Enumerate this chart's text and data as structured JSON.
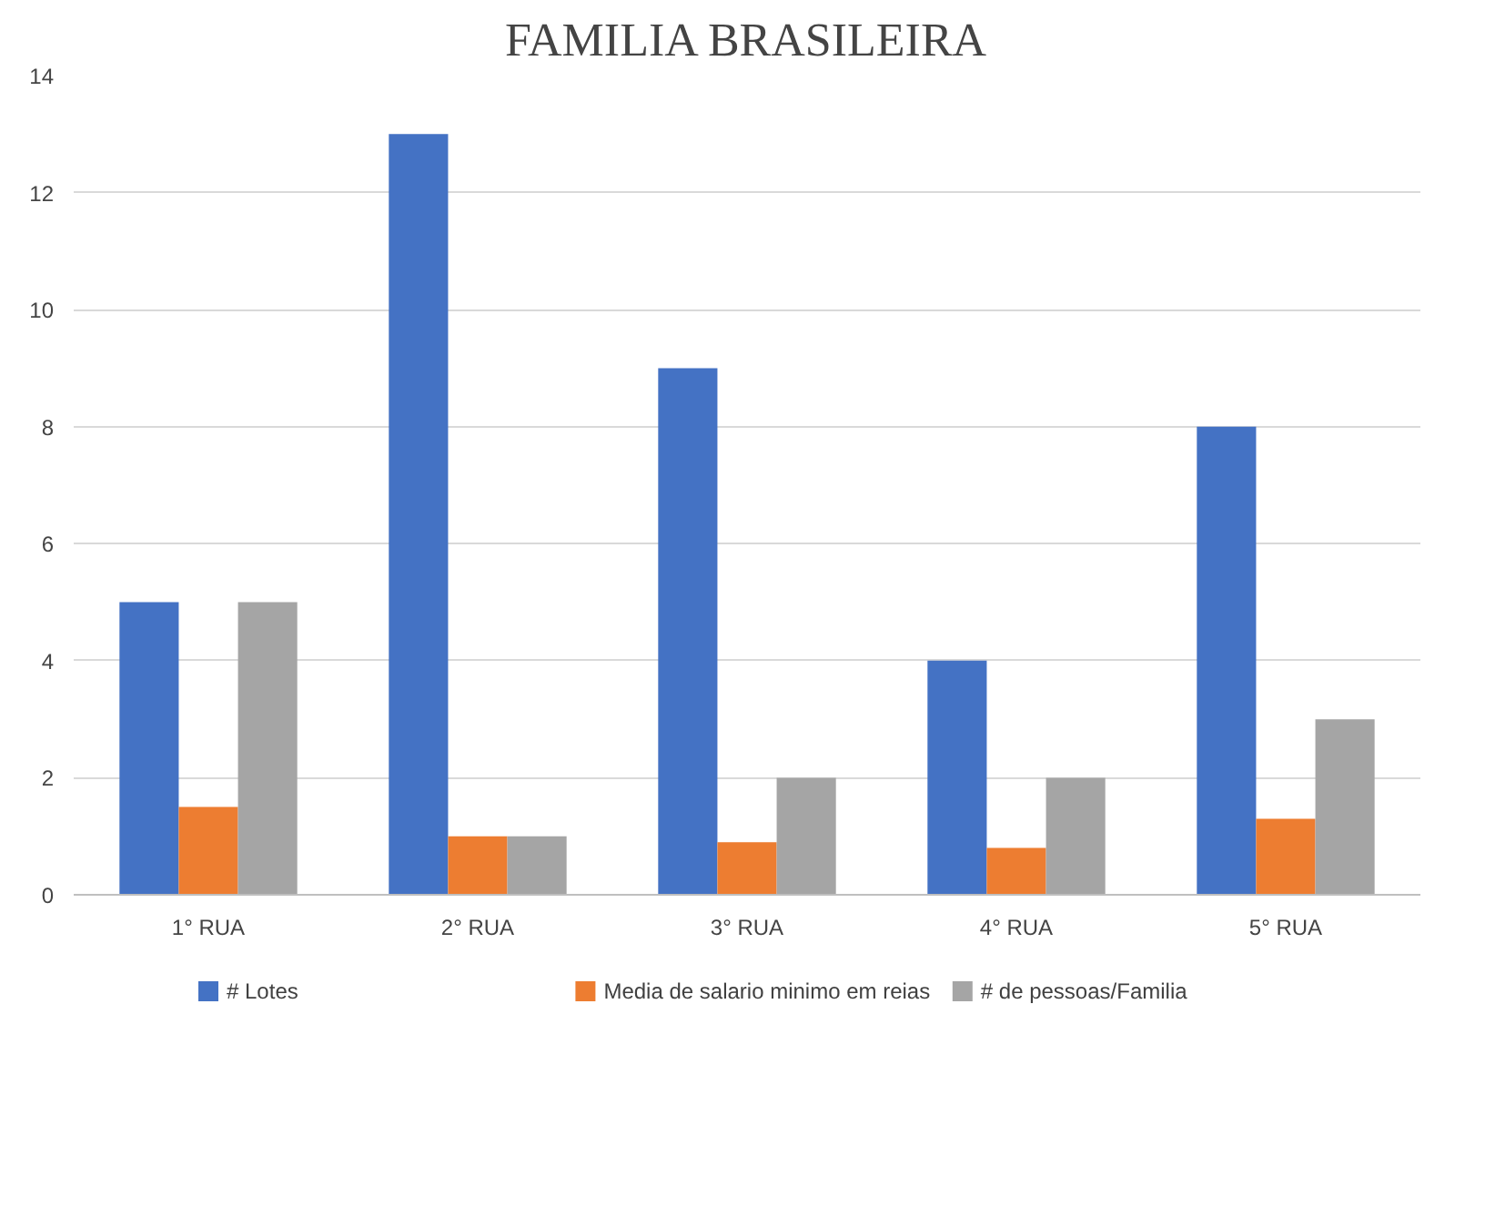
{
  "chart_data": {
    "type": "bar",
    "title": "FAMILIA BRASILEIRA",
    "categories": [
      "1° RUA",
      "2° RUA",
      "3° RUA",
      "4° RUA",
      "5° RUA"
    ],
    "series": [
      {
        "name": "# Lotes",
        "color": "#4472c4",
        "values": [
          5,
          13,
          9,
          4,
          8
        ]
      },
      {
        "name": "Media de salario minimo em reias",
        "color": "#ed7d31",
        "values": [
          1.5,
          1.0,
          0.9,
          0.8,
          1.3
        ]
      },
      {
        "name": "# de pessoas/Familia",
        "color": "#a5a5a5",
        "values": [
          5,
          1,
          2,
          2,
          3
        ]
      }
    ],
    "ylim": [
      0,
      14
    ],
    "yticks": [
      0,
      2,
      4,
      6,
      8,
      10,
      12,
      14
    ],
    "grid": "y",
    "legend": "bottom"
  }
}
